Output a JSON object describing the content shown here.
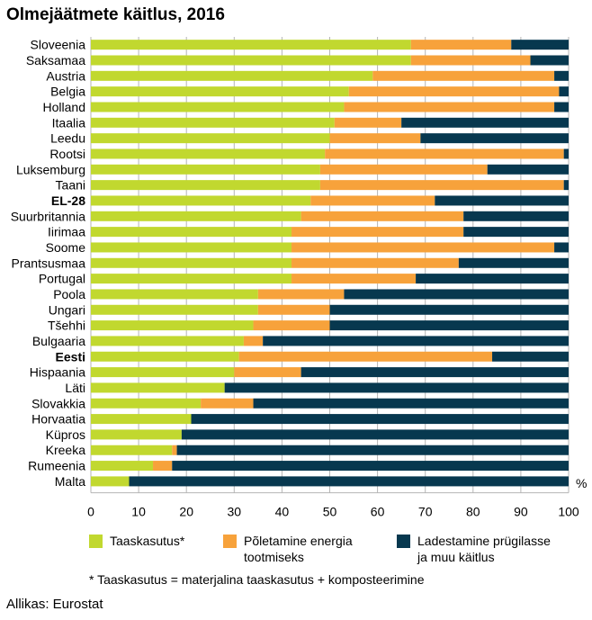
{
  "chart_data": {
    "type": "bar",
    "orientation": "horizontal",
    "stacked": true,
    "title": "Olmejäätmete käitlus, 2016",
    "unit_label": "%",
    "xlim": [
      0,
      100
    ],
    "ticks": [
      "0",
      "10",
      "20",
      "30",
      "40",
      "50",
      "60",
      "70",
      "80",
      "90",
      "100"
    ],
    "grid": true,
    "categories": [
      "Sloveenia",
      "Saksamaa",
      "Austria",
      "Belgia",
      "Holland",
      "Itaalia",
      "Leedu",
      "Rootsi",
      "Luksemburg",
      "Taani",
      "EL-28",
      "Suurbritannia",
      "Iirimaa",
      "Soome",
      "Prantsusmaa",
      "Portugal",
      "Poola",
      "Ungari",
      "Tšehhi",
      "Bulgaaria",
      "Eesti",
      "Hispaania",
      "Läti",
      "Slovakkia",
      "Horvaatia",
      "Küpros",
      "Kreeka",
      "Rumeenia",
      "Malta"
    ],
    "bold_categories": [
      "EL-28",
      "Eesti"
    ],
    "series": [
      {
        "name": "Taaskasutus*",
        "color": "#c1d82f",
        "values": [
          67,
          67,
          59,
          54,
          53,
          51,
          50,
          49,
          48,
          48,
          46,
          44,
          42,
          42,
          42,
          42,
          35,
          35,
          34,
          32,
          31,
          30,
          28,
          23,
          21,
          19,
          17,
          13,
          8
        ]
      },
      {
        "name": "Põletamine energia tootmiseks",
        "color": "#f7a23b",
        "values": [
          21,
          25,
          38,
          44,
          44,
          14,
          19,
          50,
          35,
          51,
          26,
          34,
          36,
          55,
          35,
          26,
          18,
          15,
          16,
          4,
          53,
          14,
          0,
          11,
          0,
          0,
          1,
          4,
          0
        ]
      },
      {
        "name": "Ladestamine prügilasse ja muu käitlus",
        "color": "#07384f",
        "values": [
          12,
          8,
          3,
          2,
          3,
          35,
          31,
          1,
          17,
          1,
          28,
          22,
          22,
          3,
          23,
          32,
          47,
          50,
          50,
          64,
          16,
          56,
          72,
          66,
          79,
          81,
          82,
          83,
          92
        ]
      }
    ],
    "legend_lines": [
      [
        "Taaskasutus*"
      ],
      [
        "Põletamine energia",
        "tootmiseks"
      ],
      [
        "Ladestamine prügilasse",
        "ja muu käitlus"
      ]
    ],
    "legend_position": "bottom",
    "footnote": "*  Taaskasutus = materjalina taaskasutus + komposteerimine",
    "source": "Allikas: Eurostat"
  }
}
